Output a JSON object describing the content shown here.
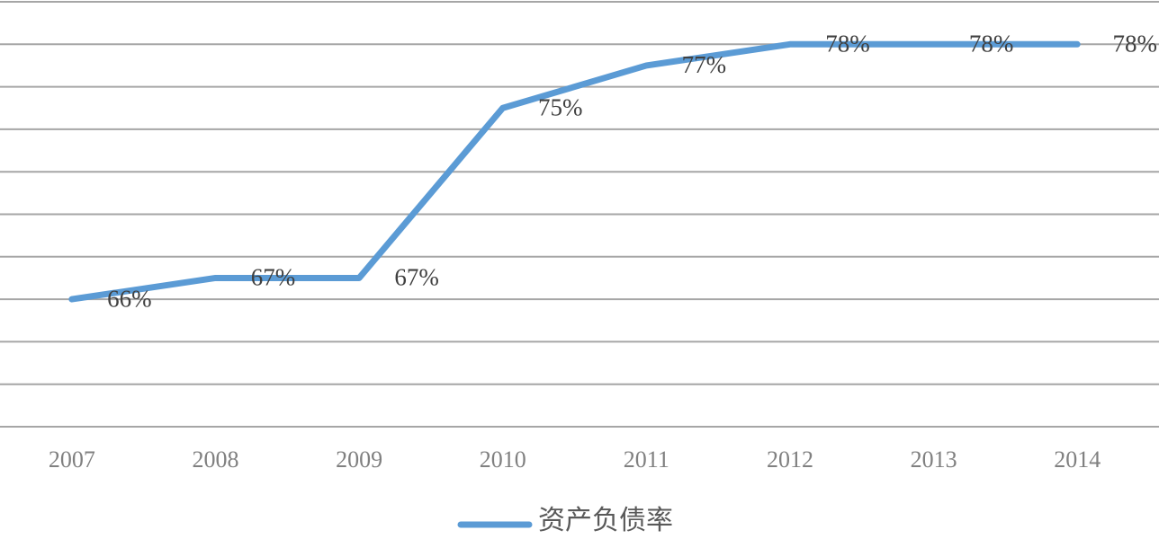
{
  "chart_data": {
    "type": "line",
    "categories": [
      "2007",
      "2008",
      "2009",
      "2010",
      "2011",
      "2012",
      "2013",
      "2014"
    ],
    "series": [
      {
        "name": "资产负债率",
        "color": "#5b9bd5",
        "values": [
          66,
          67,
          67,
          75,
          77,
          78,
          78,
          78
        ],
        "value_labels": [
          "66%",
          "67%",
          "67%",
          "75%",
          "77%",
          "78%",
          "78%",
          "78%"
        ]
      }
    ],
    "ylim": [
      60,
      80
    ],
    "yticks": [
      60,
      62,
      64,
      66,
      68,
      70,
      72,
      74,
      76,
      78,
      80
    ],
    "show_ytick_labels": false,
    "grid": true,
    "legend": "bottom"
  }
}
